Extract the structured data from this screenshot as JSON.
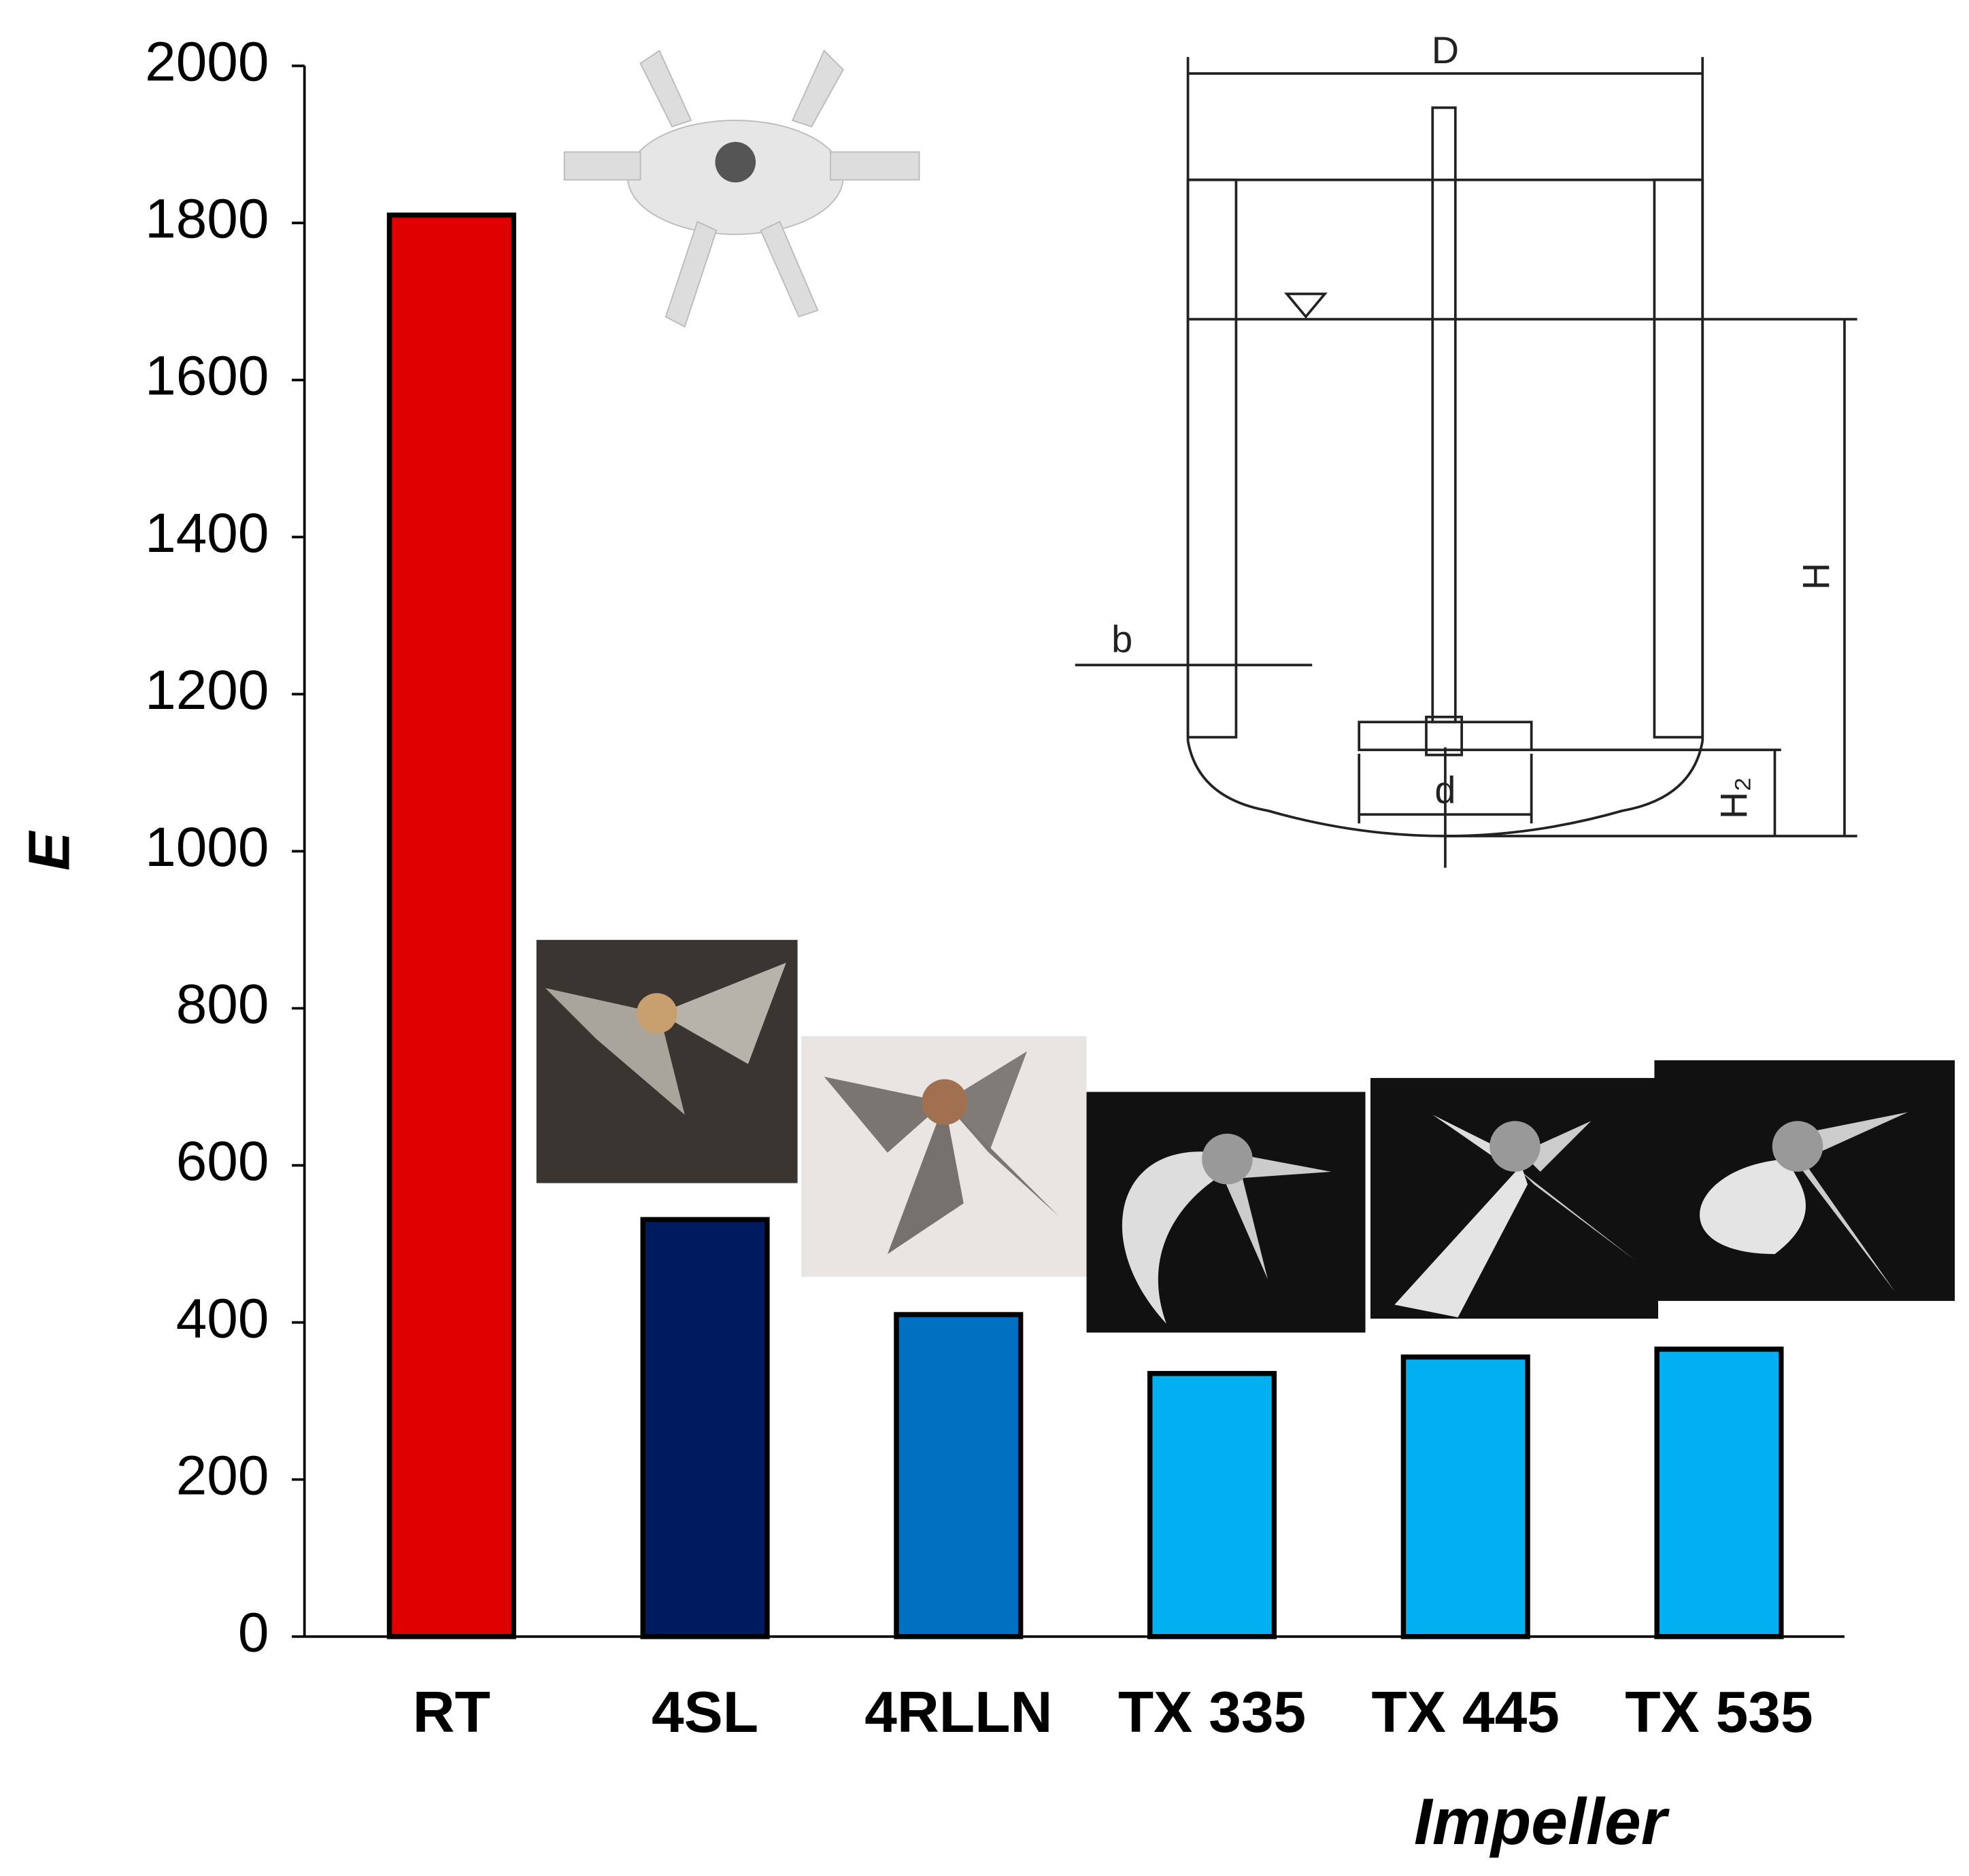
{
  "chart_data": {
    "type": "bar",
    "categories": [
      "RT",
      "4SL",
      "4RLLN",
      "TX 335",
      "TX 445",
      "TX 535"
    ],
    "values": [
      1810,
      531,
      410,
      335,
      356,
      366
    ],
    "colors": [
      "#e00000",
      "#001a60",
      "#0070c0",
      "#00b0f0",
      "#00b0f0",
      "#00b0f0"
    ],
    "ylim": [
      0,
      2000
    ],
    "yticks": [
      0,
      200,
      400,
      600,
      800,
      1000,
      1200,
      1400,
      1600,
      1800,
      2000
    ],
    "ylabel": "E",
    "xlabel": "Impeller",
    "annotations": [
      "D",
      "b",
      "d",
      "H",
      "H₂"
    ]
  }
}
